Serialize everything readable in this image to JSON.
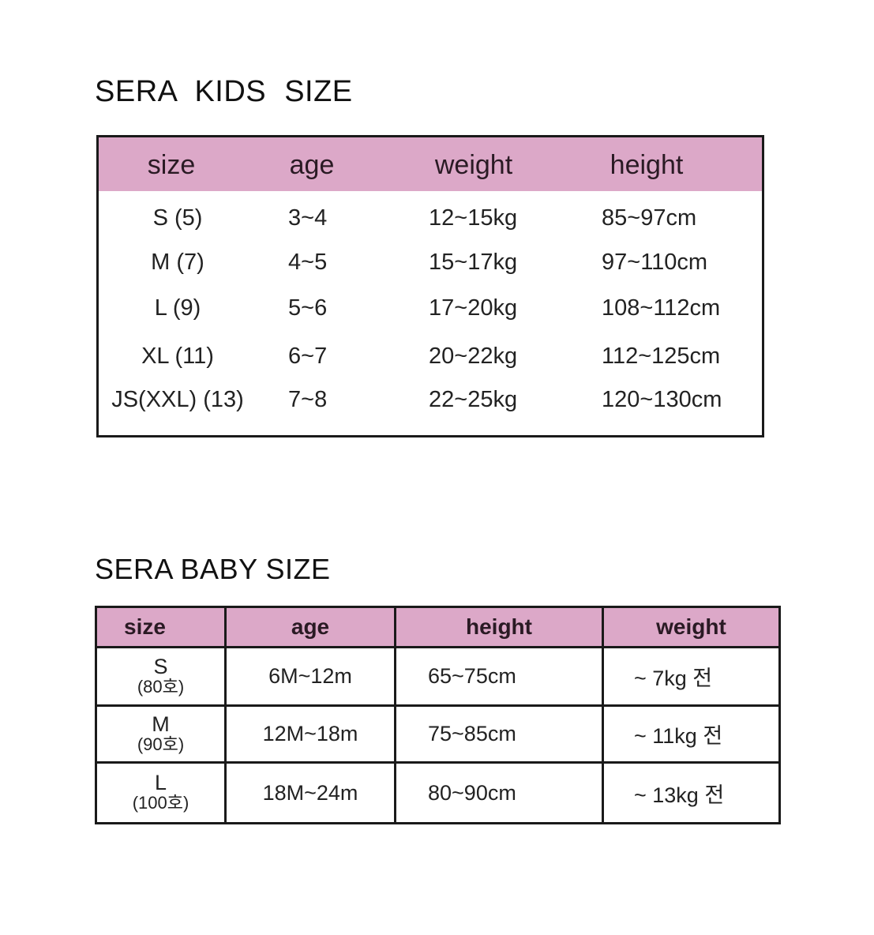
{
  "kids": {
    "title": "SERA  KIDS  SIZE",
    "headers": [
      "size",
      "age",
      "weight",
      "height"
    ],
    "rows": [
      [
        "S (5)",
        "3~4",
        "12~15kg",
        "85~97cm"
      ],
      [
        "M (7)",
        "4~5",
        "15~17kg",
        "97~110cm"
      ],
      [
        "L (9)",
        "5~6",
        "17~20kg",
        "108~112cm"
      ],
      [
        "XL (11)",
        "6~7",
        "20~22kg",
        "112~125cm"
      ],
      [
        "JS(XXL) (13)",
        "7~8",
        "22~25kg",
        "120~130cm"
      ]
    ]
  },
  "baby": {
    "title": "SERA BABY SIZE",
    "headers": [
      "size",
      "age",
      "height",
      "weight"
    ],
    "rows": [
      {
        "size": "S",
        "size_sub": "(80호)",
        "age": "6M~12m",
        "height": "65~75cm",
        "weight": "~ 7kg 전"
      },
      {
        "size": "M",
        "size_sub": "(90호)",
        "age": "12M~18m",
        "height": "75~85cm",
        "weight": "~ 11kg 전"
      },
      {
        "size": "L",
        "size_sub": "(100호)",
        "age": "18M~24m",
        "height": "80~90cm",
        "weight": "~ 13kg 전"
      }
    ]
  },
  "colors": {
    "header_bg": "#dca8c8",
    "border": "#1a1a1a"
  }
}
